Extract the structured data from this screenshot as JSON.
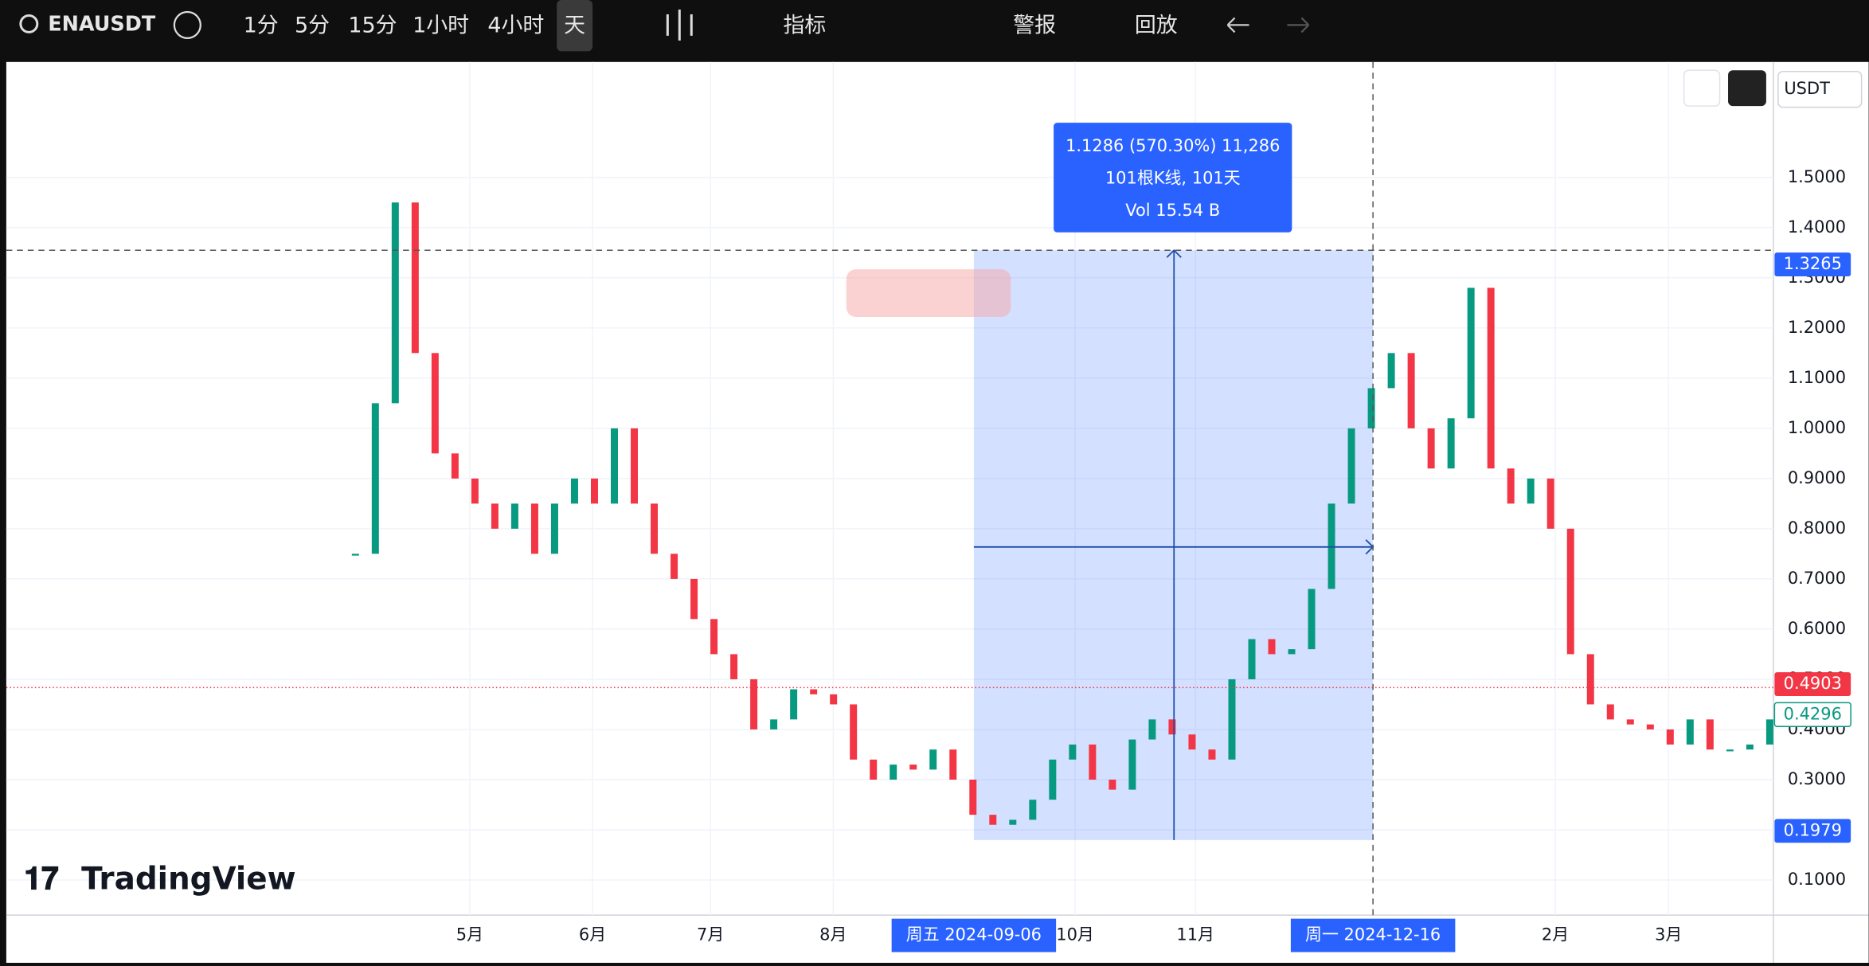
{
  "toolbar": {
    "symbol": "ENAUSDT",
    "intervals": [
      "1分",
      "5分",
      "15分",
      "1小时",
      "4小时",
      "天"
    ],
    "indicators": "指标",
    "alerts": "警报",
    "replay": "回放"
  },
  "currency": "USDT",
  "brand": "TradingView",
  "chart_data": {
    "type": "candlestick",
    "values": [
      0.75,
      1.05,
      1.45,
      1.15,
      0.95,
      0.9,
      0.85,
      0.8,
      0.85,
      0.75,
      0.85,
      0.9,
      0.85,
      1.0,
      0.85,
      0.75,
      0.7,
      0.62,
      0.55,
      0.5,
      0.4,
      0.42,
      0.48,
      0.47,
      0.45,
      0.34,
      0.3,
      0.33,
      0.32,
      0.36,
      0.3,
      0.23,
      0.21,
      0.22,
      0.26,
      0.34,
      0.37,
      0.3,
      0.28,
      0.38,
      0.42,
      0.39,
      0.36,
      0.34,
      0.5,
      0.58,
      0.55,
      0.56,
      0.68,
      0.85,
      1.0,
      1.08,
      1.15,
      1.0,
      0.92,
      1.02,
      1.28,
      0.92,
      0.85,
      0.9,
      0.8,
      0.55,
      0.45,
      0.42,
      0.41,
      0.4,
      0.37,
      0.42,
      0.36,
      0.36,
      0.37,
      0.42
    ],
    "up_color": "#089981",
    "down_color": "#f23645",
    "ylim": [
      0.03,
      1.73
    ],
    "yticks": [
      {
        "value": 0.1,
        "label": "0.1000"
      },
      {
        "value": 0.2,
        "label": "0.2000"
      },
      {
        "value": 0.3,
        "label": "0.3000"
      },
      {
        "value": 0.4,
        "label": "0.4000"
      },
      {
        "value": 0.5,
        "label": "0.5000"
      },
      {
        "value": 0.6,
        "label": "0.6000"
      },
      {
        "value": 0.7,
        "label": "0.7000"
      },
      {
        "value": 0.8,
        "label": "0.8000"
      },
      {
        "value": 0.9,
        "label": "0.9000"
      },
      {
        "value": 1.0,
        "label": "1.0000"
      },
      {
        "value": 1.1,
        "label": "1.1000"
      },
      {
        "value": 1.2,
        "label": "1.2000"
      },
      {
        "value": 1.3,
        "label": "1.3000"
      },
      {
        "value": 1.4,
        "label": "1.4000"
      },
      {
        "value": 1.5,
        "label": "1.5000"
      }
    ],
    "months": [
      "5月",
      "6月",
      "7月",
      "8月",
      "10月",
      "11月",
      "2月",
      "3月"
    ],
    "price_labels": [
      {
        "value": 1.3265,
        "label": "1.3265"
      },
      {
        "value": 0.4903,
        "label": "0.4903"
      },
      {
        "value": 0.4296,
        "label": "0.4296"
      },
      {
        "value": 0.1979,
        "label": "0.1979"
      }
    ],
    "measure": {
      "line1": "1.1286 (570.30%) 11,286",
      "line2": "101根K线, 101天",
      "line3": "Vol 15.54 B",
      "start": "周五 2024-09-06",
      "end": "周一 2024-12-16"
    },
    "grid": true
  }
}
